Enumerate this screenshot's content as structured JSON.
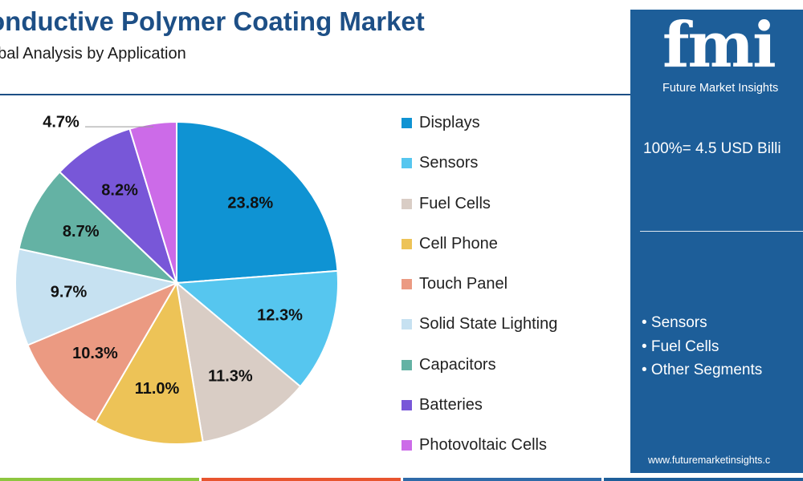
{
  "header": {
    "title": "onductive Polymer Coating Market",
    "subtitle": "obal Analysis by Application"
  },
  "brand": {
    "logo_mark": "fmi",
    "logo_text": "Future Market Insights",
    "total_label": "100%= 4.5 USD Billi",
    "segments_label": [
      "• Sensors",
      "• Fuel Cells",
      "• Other Segments"
    ],
    "url": "www.futuremarketinsights.c"
  },
  "colors": {
    "title": "#1d4f86",
    "panel": "#1d5e99",
    "bottom_bar": [
      "#8dc63f",
      "#e8542f",
      "#2e6aa8",
      "#1d5e99"
    ]
  },
  "chart_data": {
    "type": "pie",
    "title": "",
    "categories": [
      "Displays",
      "Sensors",
      "Fuel Cells",
      "Cell Phone",
      "Touch Panel",
      "Solid State Lighting",
      "Capacitors",
      "Batteries",
      "Photovoltaic Cells"
    ],
    "values": [
      23.8,
      12.3,
      11.3,
      11.0,
      10.3,
      9.7,
      8.7,
      8.2,
      4.7
    ],
    "data_labels": [
      "23.8%",
      "12.3%",
      "11.3%",
      "11.0%",
      "10.3%",
      "9.7%",
      "8.7%",
      "8.2%",
      "4.7%"
    ],
    "colors": [
      "#0f93d3",
      "#56c6ef",
      "#d9cdc5",
      "#edc357",
      "#eb9a82",
      "#c6e1f1",
      "#64b2a4",
      "#7857d8",
      "#cc6be8"
    ],
    "legend_position": "right",
    "start_angle_deg": 0,
    "direction": "clockwise"
  }
}
